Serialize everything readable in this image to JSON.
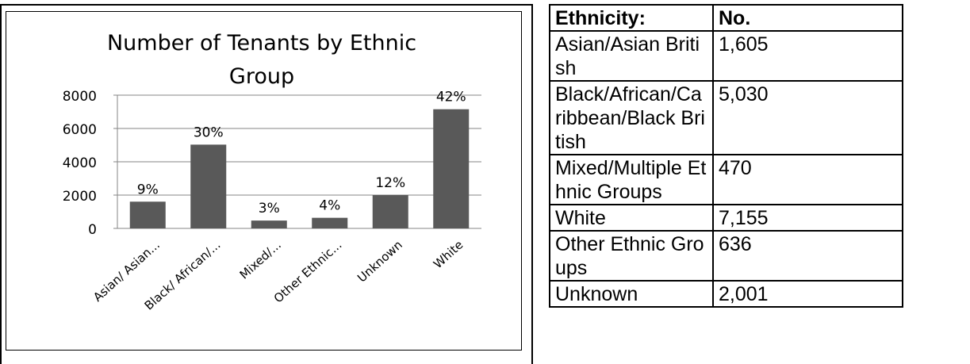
{
  "chart_data": {
    "type": "bar",
    "title": "Number of Tenants by Ethnic Group",
    "categories": [
      "Asian/ Asian...",
      "Black/ African/...",
      "Mixed/...",
      "Other Ethnic...",
      "Unknown",
      "White"
    ],
    "values": [
      1605,
      5030,
      470,
      636,
      2001,
      7155
    ],
    "data_labels": [
      "9%",
      "30%",
      "3%",
      "4%",
      "12%",
      "42%"
    ],
    "yticks": [
      "0",
      "2000",
      "4000",
      "6000",
      "8000"
    ],
    "ylim": [
      0,
      8000
    ],
    "grid": true,
    "legend": "none",
    "bar_color": "#595959"
  },
  "table": {
    "headers": [
      "Ethnicity:",
      "No."
    ],
    "rows": [
      [
        "Asian/Asian British",
        "1,605"
      ],
      [
        "Black/African/Caribbean/Black British",
        "5,030"
      ],
      [
        "Mixed/Multiple Ethnic Groups",
        "470"
      ],
      [
        "White",
        "7,155"
      ],
      [
        "Other Ethnic Groups",
        "636"
      ],
      [
        "Unknown",
        "2,001"
      ]
    ]
  }
}
